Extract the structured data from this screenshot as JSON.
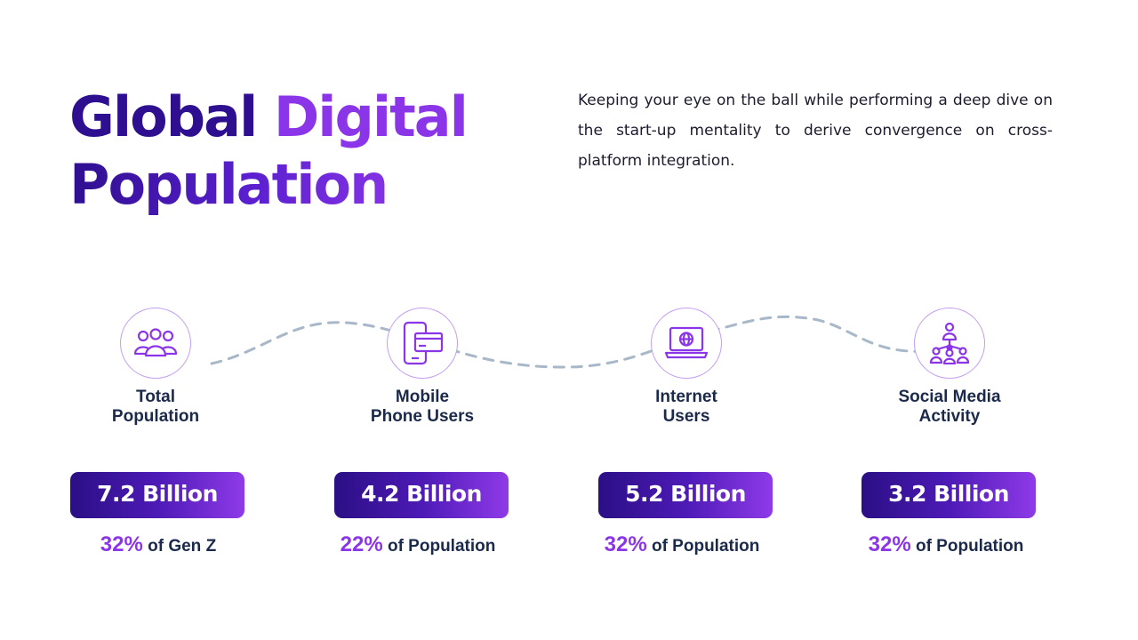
{
  "title": {
    "line1_part1": "Global",
    "line1_part2": "Digital",
    "line2": "Population"
  },
  "description": "Keeping your eye on the ball while performing a deep dive on the start-up mentality to derive convergence on cross-platform integration.",
  "colors": {
    "deep_purple": "#2e0f8f",
    "accent_purple": "#8b35e8",
    "dark_text": "#1b2a4a",
    "dashed_line": "#a8b8c8"
  },
  "stats": [
    {
      "icon": "people-group-icon",
      "label_line1": "Total",
      "label_line2": "Population",
      "value": "7.2 Billion",
      "percent": "32%",
      "suffix": "of Gen Z"
    },
    {
      "icon": "mobile-card-icon",
      "label_line1": "Mobile",
      "label_line2": "Phone Users",
      "value": "4.2 Billion",
      "percent": "22%",
      "suffix": "of Population"
    },
    {
      "icon": "laptop-globe-icon",
      "label_line1": "Internet",
      "label_line2": "Users",
      "value": "5.2 Billion",
      "percent": "32%",
      "suffix": "of Population"
    },
    {
      "icon": "social-network-icon",
      "label_line1": "Social Media",
      "label_line2": "Activity",
      "value": "3.2 Billion",
      "percent": "32%",
      "suffix": "of Population"
    }
  ]
}
